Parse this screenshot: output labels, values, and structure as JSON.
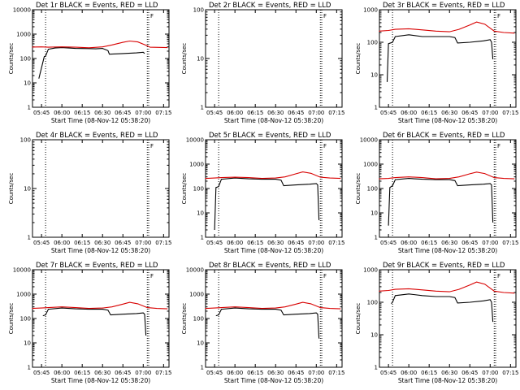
{
  "chart_data": [
    {
      "type": "line",
      "title": "Det 1r BLACK = Events, RED = LLD",
      "ylabel": "Counts/sec",
      "xlabel": "Start Time (08-Nov-12 05:38:20)",
      "yscale": "log",
      "ylim": [
        1,
        10000
      ],
      "yticks": [
        "1",
        "10",
        "100",
        "1000",
        "10000"
      ],
      "xlim": [
        "05:38:20",
        "07:19:00"
      ],
      "xticks": [
        "05:45",
        "06:00",
        "06:15",
        "06:30",
        "06:45",
        "07:00",
        "07:15"
      ],
      "marker_label": "F",
      "vlines": [
        "05:48",
        "07:03",
        "07:04"
      ],
      "series": [
        {
          "name": "Events",
          "color": "#000000",
          "x": [
            "05:43",
            "05:47",
            "05:48",
            "05:50",
            "05:55",
            "06:00",
            "06:10",
            "06:20",
            "06:25",
            "06:30",
            "06:34",
            "06:35",
            "06:45",
            "06:55",
            "07:00",
            "07:01"
          ],
          "y": [
            15,
            120,
            125,
            240,
            270,
            280,
            260,
            255,
            250,
            260,
            210,
            150,
            160,
            170,
            180,
            160
          ]
        },
        {
          "name": "LLD",
          "color": "#d80000",
          "x": [
            "05:38",
            "05:45",
            "05:48",
            "05:50",
            "06:00",
            "06:10",
            "06:20",
            "06:30",
            "06:37",
            "06:45",
            "06:50",
            "06:56",
            "07:03",
            "07:05",
            "07:18"
          ],
          "y": [
            295,
            300,
            295,
            290,
            300,
            290,
            275,
            300,
            360,
            460,
            520,
            480,
            330,
            290,
            280
          ]
        }
      ]
    },
    {
      "type": "line",
      "title": "Det 2r BLACK = Events, RED = LLD",
      "ylabel": "Counts/sec",
      "xlabel": "Start Time (08-Nov-12 05:38:20)",
      "yscale": "log",
      "ylim": [
        1,
        100
      ],
      "yticks": [
        "1",
        "10",
        "100"
      ],
      "xlim": [
        "05:38:20",
        "07:19:00"
      ],
      "xticks": [
        "05:45",
        "06:00",
        "06:15",
        "06:30",
        "06:45",
        "07:00",
        "07:15"
      ],
      "marker_label": "F",
      "vlines": [
        "05:48",
        "07:03",
        "07:04"
      ],
      "series": []
    },
    {
      "type": "line",
      "title": "Det 3r BLACK = Events, RED = LLD",
      "ylabel": "Counts/sec",
      "xlabel": "Start Time (08-Nov-12 05:38:20)",
      "yscale": "log",
      "ylim": [
        1,
        1000
      ],
      "yticks": [
        "1",
        "10",
        "100",
        "1000"
      ],
      "xlim": [
        "05:38:20",
        "07:19:00"
      ],
      "xticks": [
        "05:45",
        "06:00",
        "06:15",
        "06:30",
        "06:45",
        "07:00",
        "07:15"
      ],
      "marker_label": "F",
      "vlines": [
        "05:48",
        "07:03",
        "07:04"
      ],
      "series": [
        {
          "name": "Events",
          "color": "#000000",
          "x": [
            "05:44",
            "05:45",
            "05:48",
            "05:50",
            "06:00",
            "06:10",
            "06:20",
            "06:30",
            "06:34",
            "06:36",
            "06:45",
            "06:55",
            "07:00",
            "07:01",
            "07:02"
          ],
          "y": [
            6,
            90,
            100,
            150,
            170,
            150,
            150,
            150,
            140,
            95,
            100,
            110,
            120,
            100,
            30
          ]
        },
        {
          "name": "LLD",
          "color": "#d80000",
          "x": [
            "05:38",
            "05:45",
            "05:50",
            "06:00",
            "06:10",
            "06:20",
            "06:30",
            "06:37",
            "06:45",
            "06:50",
            "06:56",
            "07:03",
            "07:10",
            "07:18"
          ],
          "y": [
            220,
            230,
            250,
            260,
            240,
            220,
            210,
            250,
            340,
            420,
            360,
            220,
            200,
            190
          ]
        }
      ]
    },
    {
      "type": "line",
      "title": "Det 4r BLACK = Events, RED = LLD",
      "ylabel": "Counts/sec",
      "xlabel": "Start Time (08-Nov-12 05:38:20)",
      "yscale": "log",
      "ylim": [
        1,
        100
      ],
      "yticks": [
        "1",
        "10",
        "100"
      ],
      "xlim": [
        "05:38:20",
        "07:19:00"
      ],
      "xticks": [
        "05:45",
        "06:00",
        "06:15",
        "06:30",
        "06:45",
        "07:00",
        "07:15"
      ],
      "marker_label": "F",
      "vlines": [
        "05:48",
        "07:03",
        "07:04"
      ],
      "series": []
    },
    {
      "type": "line",
      "title": "Det 5r BLACK = Events, RED = LLD",
      "ylabel": "Counts/sec",
      "xlabel": "Start Time (08-Nov-12 05:38:20)",
      "yscale": "log",
      "ylim": [
        1,
        10000
      ],
      "yticks": [
        "1",
        "10",
        "100",
        "1000",
        "10000"
      ],
      "xlim": [
        "05:38:20",
        "07:19:00"
      ],
      "xticks": [
        "05:45",
        "06:00",
        "06:15",
        "06:30",
        "06:45",
        "07:00",
        "07:15"
      ],
      "marker_label": "F",
      "vlines": [
        "05:48",
        "07:03",
        "07:04"
      ],
      "series": [
        {
          "name": "Events",
          "color": "#000000",
          "x": [
            "05:45",
            "05:46",
            "05:48",
            "05:50",
            "06:00",
            "06:10",
            "06:20",
            "06:30",
            "06:34",
            "06:36",
            "06:45",
            "06:55",
            "07:00",
            "07:01",
            "07:02"
          ],
          "y": [
            2,
            110,
            120,
            240,
            270,
            250,
            240,
            240,
            220,
            130,
            140,
            150,
            160,
            140,
            5
          ]
        },
        {
          "name": "LLD",
          "color": "#d80000",
          "x": [
            "05:38",
            "05:45",
            "05:50",
            "06:00",
            "06:10",
            "06:20",
            "06:30",
            "06:37",
            "06:45",
            "06:50",
            "06:56",
            "07:03",
            "07:10",
            "07:18"
          ],
          "y": [
            260,
            270,
            280,
            290,
            280,
            260,
            270,
            300,
            400,
            480,
            420,
            290,
            270,
            260
          ]
        }
      ]
    },
    {
      "type": "line",
      "title": "Det 6r BLACK = Events, RED = LLD",
      "ylabel": "Counts/sec",
      "xlabel": "Start Time (08-Nov-12 05:38:20)",
      "yscale": "log",
      "ylim": [
        1,
        10000
      ],
      "yticks": [
        "1",
        "10",
        "100",
        "1000",
        "10000"
      ],
      "xlim": [
        "05:38:20",
        "07:19:00"
      ],
      "xticks": [
        "05:45",
        "06:00",
        "06:15",
        "06:30",
        "06:45",
        "07:00",
        "07:15"
      ],
      "marker_label": "F",
      "vlines": [
        "05:48",
        "07:03",
        "07:04"
      ],
      "series": [
        {
          "name": "Events",
          "color": "#000000",
          "x": [
            "05:45",
            "05:46",
            "05:48",
            "05:50",
            "06:00",
            "06:10",
            "06:20",
            "06:30",
            "06:34",
            "06:36",
            "06:45",
            "06:55",
            "07:00",
            "07:01",
            "07:02"
          ],
          "y": [
            3,
            110,
            130,
            230,
            260,
            240,
            230,
            230,
            210,
            130,
            140,
            150,
            160,
            140,
            4
          ]
        },
        {
          "name": "LLD",
          "color": "#d80000",
          "x": [
            "05:38",
            "05:45",
            "05:50",
            "06:00",
            "06:10",
            "06:20",
            "06:30",
            "06:37",
            "06:45",
            "06:50",
            "06:56",
            "07:03",
            "07:10",
            "07:18"
          ],
          "y": [
            250,
            260,
            280,
            300,
            280,
            250,
            260,
            300,
            400,
            470,
            410,
            280,
            260,
            250
          ]
        }
      ]
    },
    {
      "type": "line",
      "title": "Det 7r BLACK = Events, RED = LLD",
      "ylabel": "Counts/sec",
      "xlabel": "Start Time (08-Nov-12 05:38:20)",
      "yscale": "log",
      "ylim": [
        1,
        10000
      ],
      "yticks": [
        "1",
        "10",
        "100",
        "1000",
        "10000"
      ],
      "xlim": [
        "05:38:20",
        "07:19:00"
      ],
      "xticks": [
        "05:45",
        "06:00",
        "06:15",
        "06:30",
        "06:45",
        "07:00",
        "07:15"
      ],
      "marker_label": "F",
      "vlines": [
        "05:48",
        "07:03",
        "07:04"
      ],
      "series": [
        {
          "name": "Events",
          "color": "#000000",
          "x": [
            "05:46",
            "05:48",
            "05:50",
            "06:00",
            "06:10",
            "06:20",
            "06:30",
            "06:34",
            "06:36",
            "06:45",
            "06:55",
            "07:00",
            "07:01",
            "07:02"
          ],
          "y": [
            130,
            140,
            240,
            270,
            250,
            240,
            240,
            220,
            140,
            150,
            160,
            170,
            150,
            20
          ]
        },
        {
          "name": "LLD",
          "color": "#d80000",
          "x": [
            "05:38",
            "05:45",
            "05:50",
            "06:00",
            "06:10",
            "06:20",
            "06:30",
            "06:37",
            "06:45",
            "06:50",
            "06:56",
            "07:03",
            "07:10",
            "07:18"
          ],
          "y": [
            260,
            270,
            280,
            300,
            280,
            260,
            270,
            300,
            390,
            460,
            400,
            280,
            260,
            250
          ]
        }
      ]
    },
    {
      "type": "line",
      "title": "Det 8r BLACK = Events, RED = LLD",
      "ylabel": "Counts/sec",
      "xlabel": "Start Time (08-Nov-12 05:38:20)",
      "yscale": "log",
      "ylim": [
        1,
        10000
      ],
      "yticks": [
        "1",
        "10",
        "100",
        "1000",
        "10000"
      ],
      "xlim": [
        "05:38:20",
        "07:19:00"
      ],
      "xticks": [
        "05:45",
        "06:00",
        "06:15",
        "06:30",
        "06:45",
        "07:00",
        "07:15"
      ],
      "marker_label": "F",
      "vlines": [
        "05:48",
        "07:03",
        "07:04"
      ],
      "series": [
        {
          "name": "Events",
          "color": "#000000",
          "x": [
            "05:46",
            "05:48",
            "05:50",
            "06:00",
            "06:10",
            "06:20",
            "06:30",
            "06:34",
            "06:36",
            "06:45",
            "06:55",
            "07:00",
            "07:01",
            "07:02"
          ],
          "y": [
            130,
            140,
            240,
            270,
            250,
            240,
            240,
            220,
            140,
            150,
            160,
            170,
            150,
            15
          ]
        },
        {
          "name": "LLD",
          "color": "#d80000",
          "x": [
            "05:38",
            "05:45",
            "05:50",
            "06:00",
            "06:10",
            "06:20",
            "06:30",
            "06:37",
            "06:45",
            "06:50",
            "06:56",
            "07:03",
            "07:10",
            "07:18"
          ],
          "y": [
            260,
            270,
            280,
            300,
            280,
            260,
            270,
            300,
            390,
            460,
            400,
            280,
            260,
            250
          ]
        }
      ]
    },
    {
      "type": "line",
      "title": "Det 9r BLACK = Events, RED = LLD",
      "ylabel": "Counts/sec",
      "xlabel": "Start Time (08-Nov-12 05:38:20)",
      "yscale": "log",
      "ylim": [
        1,
        1000
      ],
      "yticks": [
        "1",
        "10",
        "100",
        "1000"
      ],
      "xlim": [
        "05:38:20",
        "07:19:00"
      ],
      "xticks": [
        "05:45",
        "06:00",
        "06:15",
        "06:30",
        "06:45",
        "07:00",
        "07:15"
      ],
      "marker_label": "F",
      "vlines": [
        "05:48",
        "07:03",
        "07:04"
      ],
      "series": [
        {
          "name": "Events",
          "color": "#000000",
          "x": [
            "05:47",
            "05:48",
            "05:50",
            "06:00",
            "06:10",
            "06:20",
            "06:30",
            "06:34",
            "06:36",
            "06:45",
            "06:55",
            "07:00",
            "07:01",
            "07:02"
          ],
          "y": [
            90,
            100,
            160,
            180,
            160,
            150,
            150,
            140,
            95,
            100,
            110,
            120,
            100,
            25
          ]
        },
        {
          "name": "LLD",
          "color": "#d80000",
          "x": [
            "05:38",
            "05:45",
            "05:50",
            "06:00",
            "06:10",
            "06:20",
            "06:30",
            "06:37",
            "06:45",
            "06:50",
            "06:56",
            "07:03",
            "07:10",
            "07:18"
          ],
          "y": [
            220,
            230,
            250,
            260,
            240,
            220,
            210,
            250,
            340,
            420,
            360,
            220,
            200,
            190
          ]
        }
      ]
    }
  ]
}
